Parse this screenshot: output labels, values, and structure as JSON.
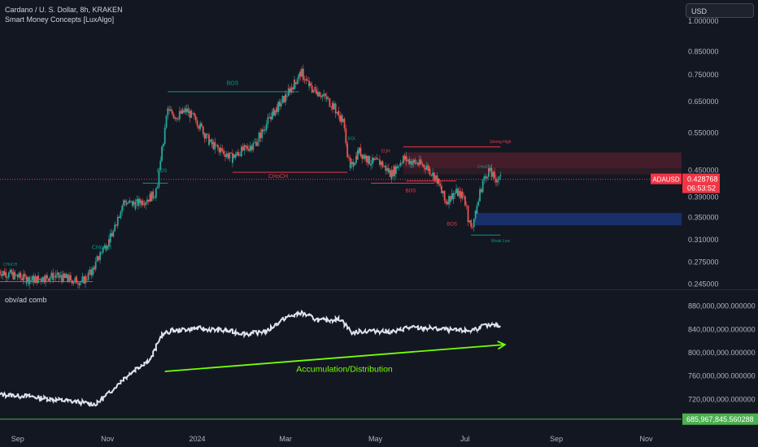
{
  "header": {
    "title": "Cardano / U. S. Dollar, 8h, KRAKEN",
    "indicator": "Smart Money Concepts [LuxAlgo]"
  },
  "currency": "USD",
  "subpanel_title": "obv/ad comb",
  "colors": {
    "background": "#131722",
    "bull": "#26a69a",
    "bear": "#ef5350",
    "smc_green": "#089981",
    "smc_red": "#f23645",
    "obv_line": "#e0e3eb",
    "trend_arrow": "#76ff03",
    "bottom_line": "#4caf50"
  },
  "chart_data": [
    {
      "type": "candlestick",
      "symbol": "ADAUSD",
      "timeframe": "8h",
      "x_tick_labels": [
        "Sep",
        "Nov",
        "2024",
        "Mar",
        "May",
        "Jul",
        "Sep",
        "Nov"
      ],
      "y_tick_labels": [
        "1.000000",
        "0.850000",
        "0.750000",
        "0.650000",
        "0.550000",
        "0.450000",
        "0.390000",
        "0.350000",
        "0.310000",
        "0.275000",
        "0.245000"
      ],
      "y_scale": "log",
      "ylim": [
        0.24,
        1.1
      ],
      "last_price_label": "ADAUSD",
      "last_price": "0.428768",
      "countdown": "06:53:52",
      "price_path": [
        [
          "2023-08-20",
          0.262
        ],
        [
          "2023-09-01",
          0.255
        ],
        [
          "2023-09-10",
          0.25
        ],
        [
          "2023-09-25",
          0.255
        ],
        [
          "2023-10-05",
          0.252
        ],
        [
          "2023-10-15",
          0.248
        ],
        [
          "2023-10-22",
          0.262
        ],
        [
          "2023-10-28",
          0.29
        ],
        [
          "2023-11-05",
          0.32
        ],
        [
          "2023-11-12",
          0.38
        ],
        [
          "2023-11-20",
          0.375
        ],
        [
          "2023-11-28",
          0.385
        ],
        [
          "2023-12-05",
          0.4
        ],
        [
          "2023-12-12",
          0.62
        ],
        [
          "2023-12-18",
          0.6
        ],
        [
          "2023-12-25",
          0.62
        ],
        [
          "2024-01-02",
          0.58
        ],
        [
          "2024-01-10",
          0.52
        ],
        [
          "2024-01-18",
          0.5
        ],
        [
          "2024-01-25",
          0.48
        ],
        [
          "2024-02-01",
          0.5
        ],
        [
          "2024-02-10",
          0.52
        ],
        [
          "2024-02-20",
          0.6
        ],
        [
          "2024-02-28",
          0.65
        ],
        [
          "2024-03-05",
          0.7
        ],
        [
          "2024-03-12",
          0.76
        ],
        [
          "2024-03-18",
          0.7
        ],
        [
          "2024-03-25",
          0.68
        ],
        [
          "2024-04-02",
          0.64
        ],
        [
          "2024-04-10",
          0.58
        ],
        [
          "2024-04-14",
          0.45
        ],
        [
          "2024-04-20",
          0.5
        ],
        [
          "2024-04-28",
          0.47
        ],
        [
          "2024-05-05",
          0.47
        ],
        [
          "2024-05-12",
          0.44
        ],
        [
          "2024-05-20",
          0.48
        ],
        [
          "2024-05-27",
          0.47
        ],
        [
          "2024-06-05",
          0.46
        ],
        [
          "2024-06-12",
          0.43
        ],
        [
          "2024-06-18",
          0.38
        ],
        [
          "2024-06-25",
          0.4
        ],
        [
          "2024-07-01",
          0.39
        ],
        [
          "2024-07-05",
          0.33
        ],
        [
          "2024-07-08",
          0.35
        ],
        [
          "2024-07-13",
          0.42
        ],
        [
          "2024-07-17",
          0.45
        ],
        [
          "2024-07-22",
          0.43
        ],
        [
          "2024-07-25",
          0.429
        ]
      ],
      "annotations": [
        {
          "text": "BOS",
          "color": "green"
        },
        {
          "text": "BOS",
          "color": "green"
        },
        {
          "text": "BOS",
          "color": "green"
        },
        {
          "text": "CHoCH",
          "color": "green"
        },
        {
          "text": "CHoCH",
          "color": "green"
        },
        {
          "text": "CHoCH",
          "color": "red"
        },
        {
          "text": "BOS",
          "color": "red"
        },
        {
          "text": "BOS",
          "color": "red"
        },
        {
          "text": "Strong High",
          "color": "red"
        },
        {
          "text": "Weak Low",
          "color": "green"
        },
        {
          "text": "EQL",
          "color": "green"
        },
        {
          "text": "EQH",
          "color": "red"
        }
      ]
    },
    {
      "type": "line",
      "name": "obv/ad comb",
      "y_tick_labels": [
        "880,000,000.000000",
        "840,000,000.000000",
        "800,000,000.000000",
        "760,000,000.000000",
        "720,000,000.000000"
      ],
      "ylim": [
        680000000,
        895000000
      ],
      "last_value_label": "685,967,845.560288",
      "baseline_value": 685967845.560288,
      "annotation": "Accumulation/Distribution",
      "series": [
        [
          "2023-08-20",
          728000000
        ],
        [
          "2023-09-10",
          725000000
        ],
        [
          "2023-09-25",
          720000000
        ],
        [
          "2023-10-10",
          716000000
        ],
        [
          "2023-10-25",
          712000000
        ],
        [
          "2023-11-02",
          730000000
        ],
        [
          "2023-11-12",
          755000000
        ],
        [
          "2023-11-22",
          775000000
        ],
        [
          "2023-12-01",
          790000000
        ],
        [
          "2023-12-08",
          830000000
        ],
        [
          "2023-12-15",
          838000000
        ],
        [
          "2024-01-01",
          842000000
        ],
        [
          "2024-01-20",
          838000000
        ],
        [
          "2024-02-05",
          832000000
        ],
        [
          "2024-02-18",
          838000000
        ],
        [
          "2024-03-01",
          860000000
        ],
        [
          "2024-03-12",
          868000000
        ],
        [
          "2024-03-25",
          855000000
        ],
        [
          "2024-04-08",
          858000000
        ],
        [
          "2024-04-15",
          835000000
        ],
        [
          "2024-04-28",
          838000000
        ],
        [
          "2024-05-15",
          836000000
        ],
        [
          "2024-05-22",
          843000000
        ],
        [
          "2024-06-10",
          842000000
        ],
        [
          "2024-06-25",
          838000000
        ],
        [
          "2024-07-05",
          838000000
        ],
        [
          "2024-07-15",
          847000000
        ],
        [
          "2024-07-25",
          846000000
        ]
      ]
    }
  ]
}
